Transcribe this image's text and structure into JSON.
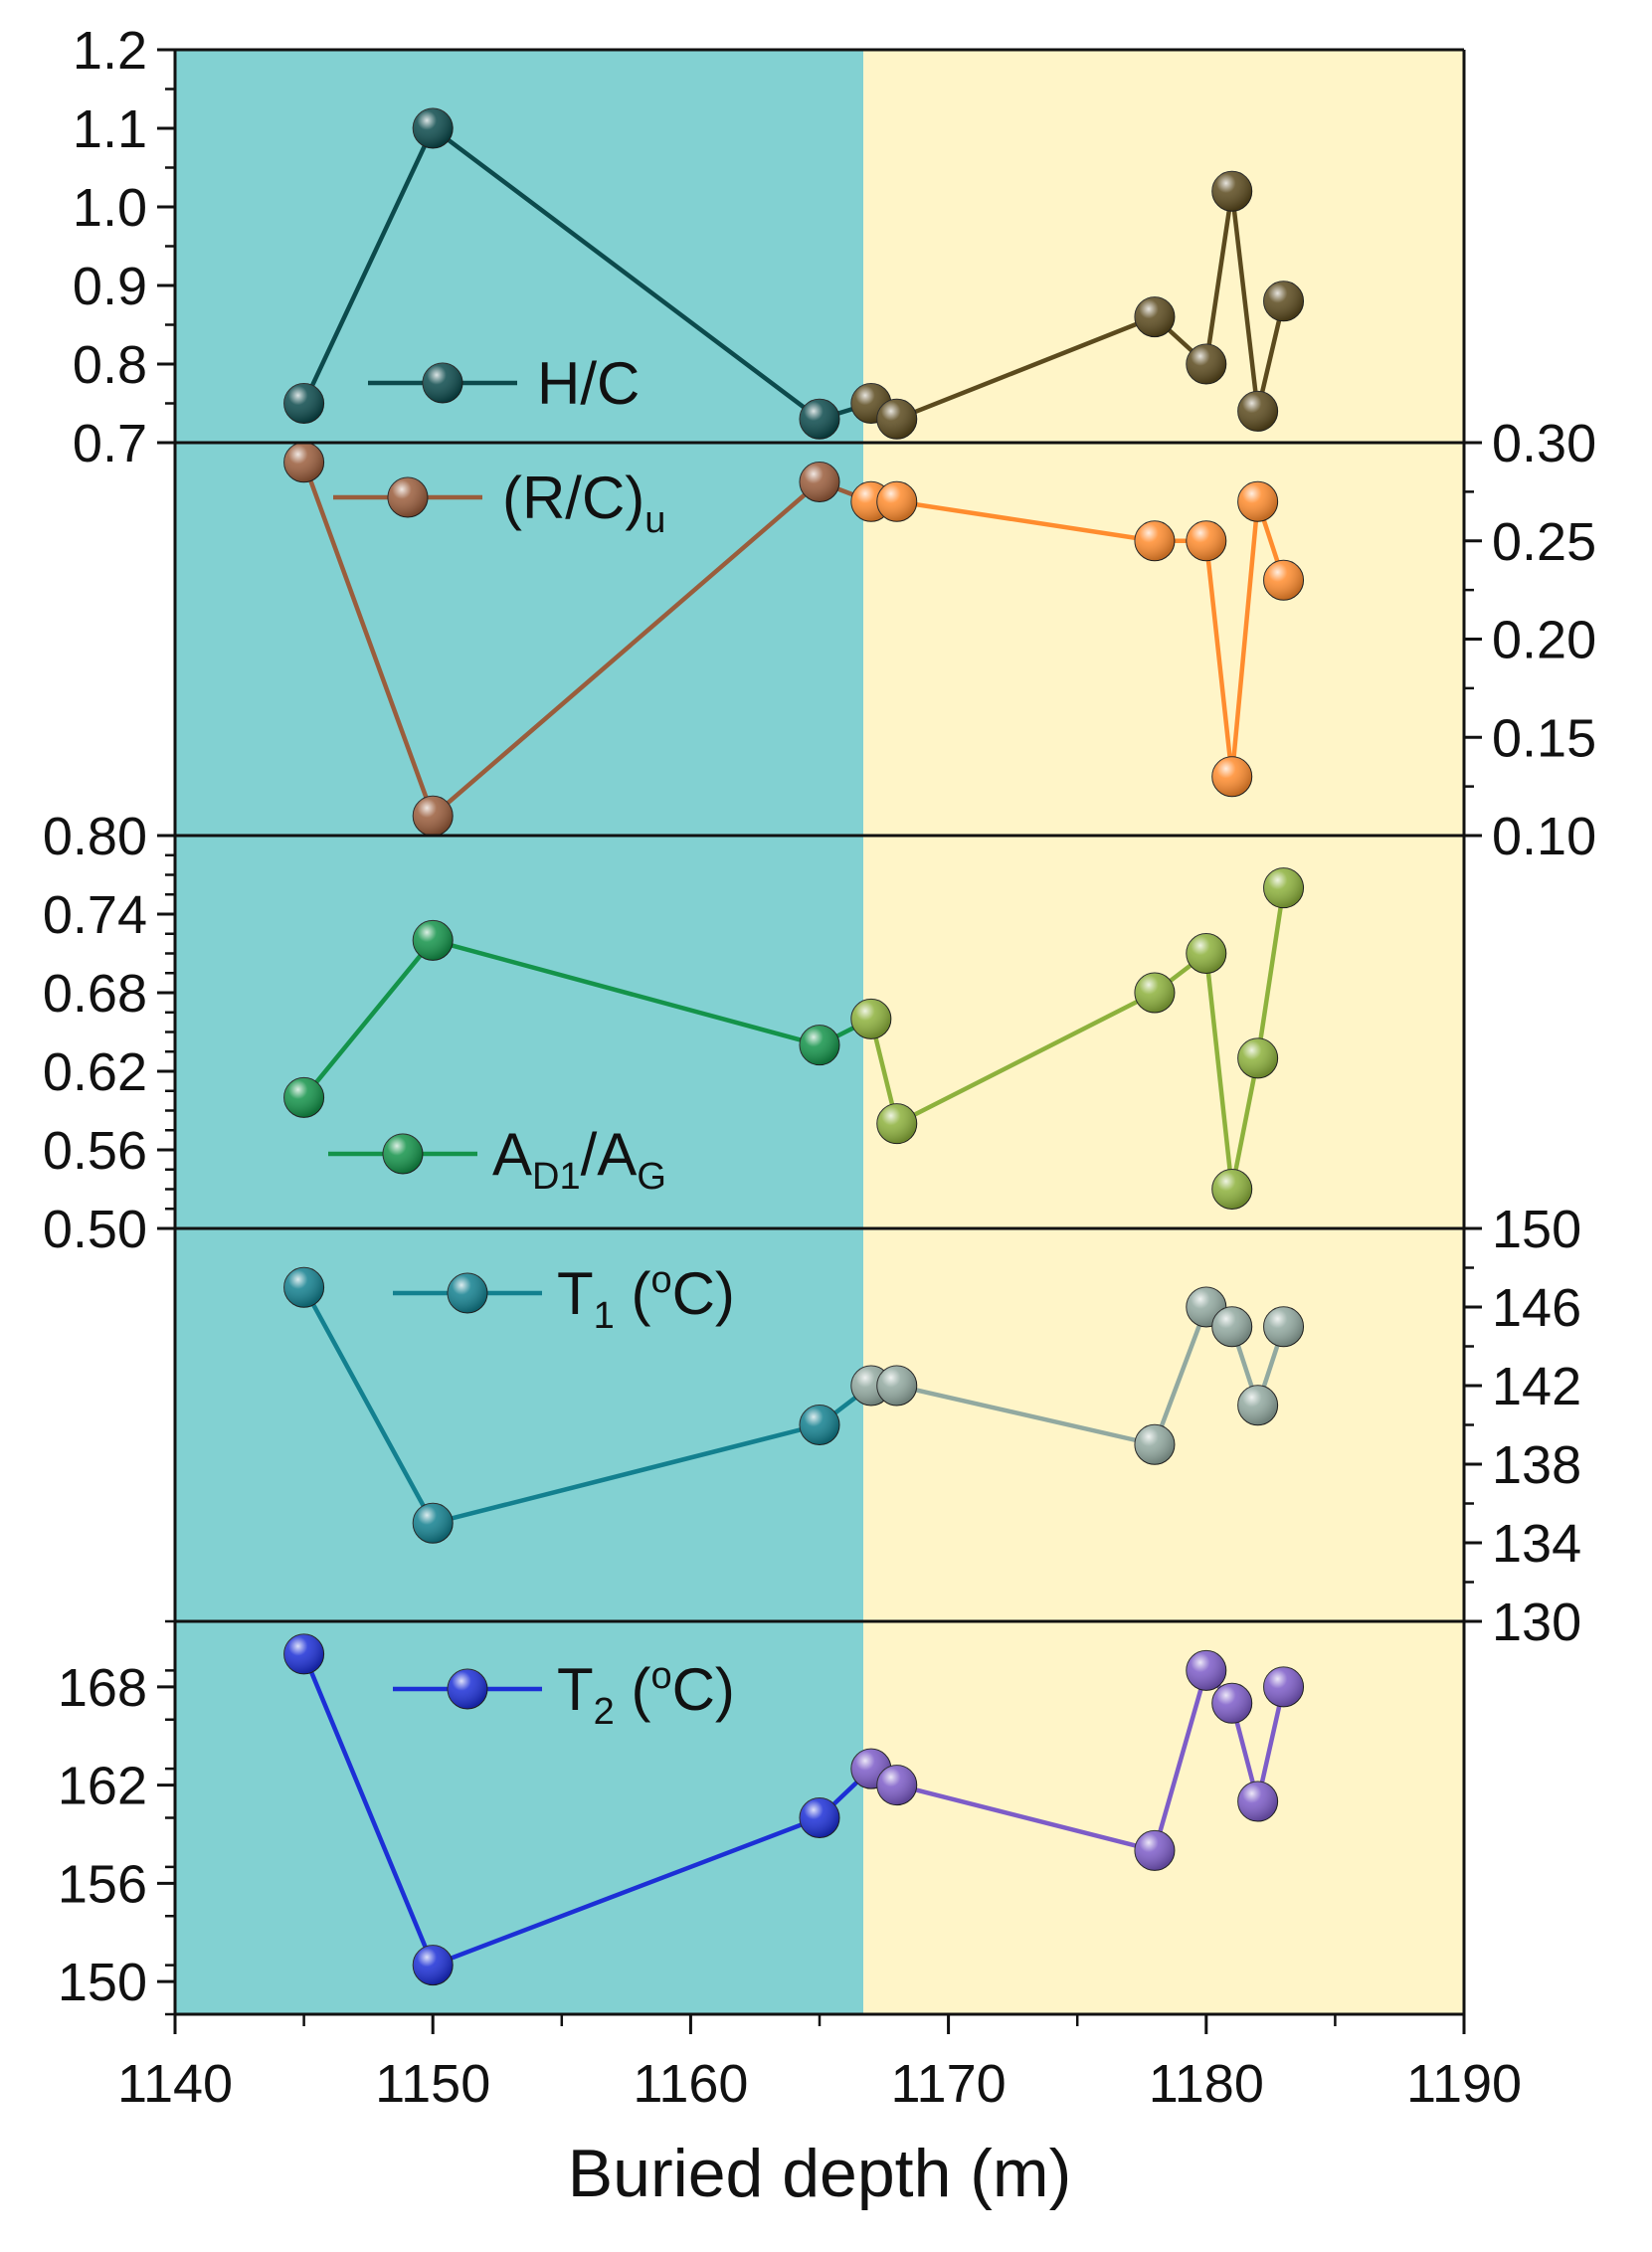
{
  "colors": {
    "left_region": "#82d1d2",
    "right_region": "#fff5c8",
    "axis": "#111111"
  },
  "x_axis": {
    "range": [
      1140,
      1190
    ],
    "ticks": [
      1140,
      1150,
      1160,
      1170,
      1180,
      1190
    ],
    "minor_step": 5,
    "title": "Buried depth (m)",
    "region_boundary": 1166.7
  },
  "chart_data": [
    {
      "type": "line",
      "id": "hc",
      "legend": {
        "main": "H/C",
        "sub": "",
        "suffix": ""
      },
      "y_side": "left",
      "ylim": [
        0.7,
        1.2
      ],
      "yticks": [
        "0.7",
        "0.8",
        "0.9",
        "1.0",
        "1.1",
        "1.2"
      ],
      "y_minor_step": 0.05,
      "x": [
        1145,
        1150,
        1165,
        1167,
        1168,
        1178,
        1180,
        1181,
        1182,
        1183
      ],
      "y": [
        0.75,
        1.1,
        0.73,
        0.75,
        0.73,
        0.86,
        0.8,
        1.02,
        0.74,
        0.88
      ],
      "color_left": "#0c4a4c",
      "color_right": "#5b4a1e"
    },
    {
      "type": "line",
      "id": "rc",
      "legend": {
        "main": "(R/C)",
        "sub": "u",
        "suffix": ""
      },
      "y_side": "right",
      "ylim": [
        0.1,
        0.3
      ],
      "yticks": [
        "0.10",
        "0.15",
        "0.20",
        "0.25",
        "0.30"
      ],
      "y_minor_step": 0.025,
      "x": [
        1145,
        1150,
        1165,
        1167,
        1168,
        1178,
        1180,
        1181,
        1182,
        1183
      ],
      "y": [
        0.29,
        0.11,
        0.28,
        0.27,
        0.27,
        0.25,
        0.25,
        0.13,
        0.27,
        0.23
      ],
      "color_left": "#9a5d3c",
      "color_right": "#ff8c2e"
    },
    {
      "type": "line",
      "id": "ad",
      "legend": {
        "main": "A",
        "sub": "D1",
        "suffix": "/A",
        "sub2": "G"
      },
      "y_side": "left",
      "ylim": [
        0.5,
        0.8
      ],
      "yticks": [
        "0.50",
        "0.56",
        "0.62",
        "0.68",
        "0.74",
        "0.80"
      ],
      "y_minor_step": 0.015,
      "x": [
        1145,
        1150,
        1165,
        1167,
        1168,
        1178,
        1180,
        1181,
        1182,
        1183
      ],
      "y": [
        0.6,
        0.72,
        0.64,
        0.66,
        0.58,
        0.68,
        0.71,
        0.53,
        0.63,
        0.76
      ],
      "color_left": "#14934a",
      "color_right": "#8db13c"
    },
    {
      "type": "line",
      "id": "t1",
      "legend": {
        "main": "T",
        "sub": "1",
        "suffix": " (",
        "sup": "o",
        "suffix2": "C)"
      },
      "y_side": "right",
      "ylim": [
        130,
        150
      ],
      "yticks": [
        "130",
        "134",
        "138",
        "142",
        "146",
        "150"
      ],
      "y_minor_step": 2,
      "x": [
        1145,
        1150,
        1165,
        1167,
        1168,
        1178,
        1180,
        1181,
        1182,
        1183
      ],
      "y": [
        147,
        135,
        140,
        142,
        142,
        139,
        146,
        145,
        141,
        145
      ],
      "color_left": "#13808f",
      "color_right": "#92a9a0"
    },
    {
      "type": "line",
      "id": "t2",
      "legend": {
        "main": "T",
        "sub": "2",
        "suffix": " (",
        "sup": "o",
        "suffix2": "C)"
      },
      "y_side": "left",
      "ylim": [
        148,
        172
      ],
      "yticks": [
        "150",
        "156",
        "162",
        "168"
      ],
      "y_minor_step": 3,
      "x": [
        1145,
        1150,
        1165,
        1167,
        1168,
        1178,
        1180,
        1181,
        1182,
        1183
      ],
      "y": [
        170,
        151,
        160,
        163,
        162,
        158,
        169,
        167,
        161,
        168
      ],
      "color_left": "#1c2fd6",
      "color_right": "#7d5cc8"
    }
  ]
}
